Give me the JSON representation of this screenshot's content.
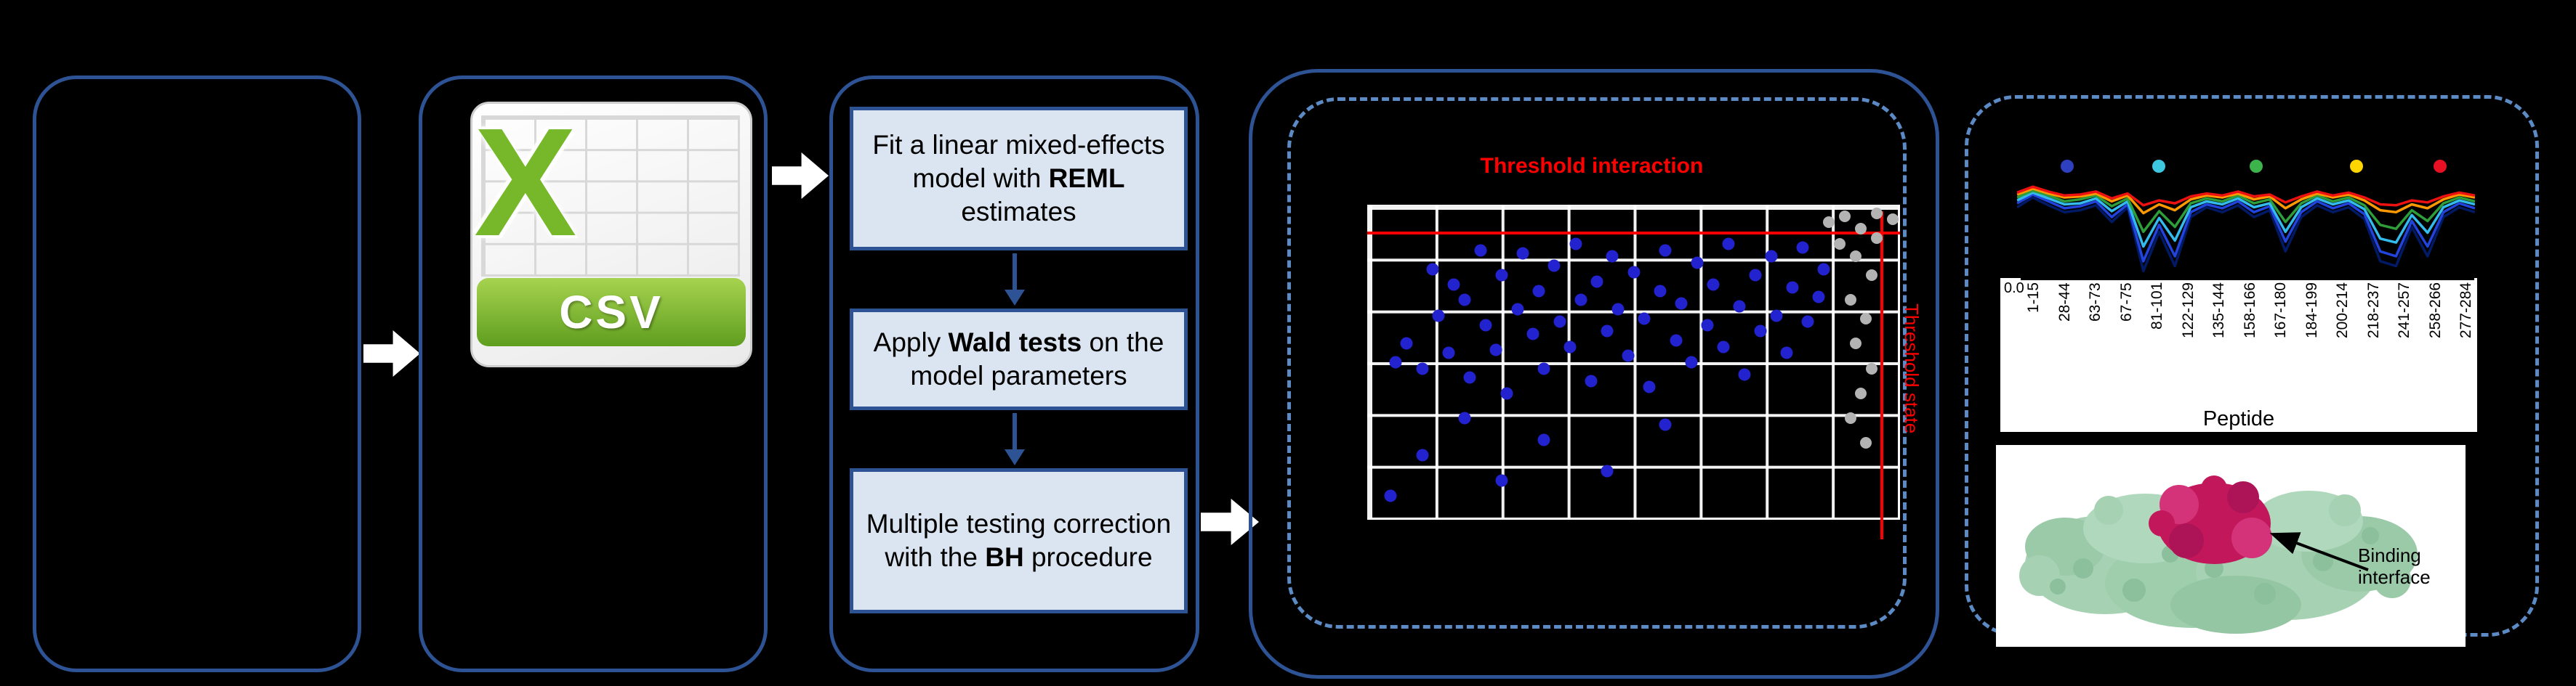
{
  "colors": {
    "background": "#000000",
    "panel_border": "#2e5395",
    "dashed_border": "#5b8ac5",
    "step_box_fill": "#dbe5f1",
    "step_box_border": "#2e5395",
    "arrow_white": "#ffffff",
    "threshold_red": "#ff0000",
    "scatter_blue": "#2222cf",
    "scatter_gray": "#b3b3b3",
    "csv_green": "#76b82a",
    "protein_green": "#a6d2b3",
    "protein_magenta": "#c2185b"
  },
  "csv_icon": {
    "letter": "X",
    "label": "CSV"
  },
  "steps": {
    "box1": {
      "pre": "Fit a linear mixed-effects model with ",
      "bold": "REML",
      "post": " estimates"
    },
    "box2": {
      "pre": "Apply ",
      "bold": "Wald tests",
      "post": " on the model parameters"
    },
    "box3": {
      "line1": "Multiple testing correction",
      "pre2": "with the ",
      "bold": "BH",
      "post2": " procedure"
    }
  },
  "scatter": {
    "title": "Threshold interaction",
    "right_label": "Threshold state",
    "hline_y": 0.08,
    "vline_x": 0.967,
    "blue_points": [
      [
        0.05,
        0.5
      ],
      [
        0.07,
        0.44
      ],
      [
        0.1,
        0.52
      ],
      [
        0.12,
        0.2
      ],
      [
        0.13,
        0.35
      ],
      [
        0.15,
        0.47
      ],
      [
        0.16,
        0.25
      ],
      [
        0.18,
        0.3
      ],
      [
        0.19,
        0.55
      ],
      [
        0.21,
        0.14
      ],
      [
        0.22,
        0.38
      ],
      [
        0.24,
        0.46
      ],
      [
        0.25,
        0.22
      ],
      [
        0.26,
        0.6
      ],
      [
        0.28,
        0.33
      ],
      [
        0.29,
        0.15
      ],
      [
        0.31,
        0.41
      ],
      [
        0.32,
        0.27
      ],
      [
        0.33,
        0.52
      ],
      [
        0.35,
        0.19
      ],
      [
        0.36,
        0.37
      ],
      [
        0.38,
        0.45
      ],
      [
        0.39,
        0.12
      ],
      [
        0.4,
        0.3
      ],
      [
        0.42,
        0.56
      ],
      [
        0.43,
        0.24
      ],
      [
        0.45,
        0.4
      ],
      [
        0.46,
        0.16
      ],
      [
        0.47,
        0.33
      ],
      [
        0.49,
        0.48
      ],
      [
        0.5,
        0.21
      ],
      [
        0.52,
        0.36
      ],
      [
        0.53,
        0.58
      ],
      [
        0.55,
        0.27
      ],
      [
        0.56,
        0.14
      ],
      [
        0.58,
        0.43
      ],
      [
        0.59,
        0.31
      ],
      [
        0.61,
        0.5
      ],
      [
        0.62,
        0.18
      ],
      [
        0.64,
        0.38
      ],
      [
        0.65,
        0.25
      ],
      [
        0.67,
        0.45
      ],
      [
        0.68,
        0.12
      ],
      [
        0.7,
        0.32
      ],
      [
        0.71,
        0.54
      ],
      [
        0.73,
        0.22
      ],
      [
        0.74,
        0.4
      ],
      [
        0.76,
        0.16
      ],
      [
        0.77,
        0.35
      ],
      [
        0.79,
        0.47
      ],
      [
        0.8,
        0.26
      ],
      [
        0.82,
        0.13
      ],
      [
        0.83,
        0.37
      ],
      [
        0.85,
        0.29
      ],
      [
        0.86,
        0.2
      ],
      [
        0.1,
        0.8
      ],
      [
        0.25,
        0.88
      ],
      [
        0.33,
        0.75
      ],
      [
        0.45,
        0.85
      ],
      [
        0.04,
        0.93
      ],
      [
        0.56,
        0.7
      ],
      [
        0.18,
        0.68
      ]
    ],
    "gray_points": [
      [
        0.87,
        0.05
      ],
      [
        0.9,
        0.03
      ],
      [
        0.93,
        0.07
      ],
      [
        0.96,
        0.02
      ],
      [
        0.89,
        0.12
      ],
      [
        0.92,
        0.16
      ],
      [
        0.95,
        0.22
      ],
      [
        0.91,
        0.3
      ],
      [
        0.94,
        0.36
      ],
      [
        0.92,
        0.44
      ],
      [
        0.95,
        0.52
      ],
      [
        0.93,
        0.6
      ],
      [
        0.91,
        0.68
      ],
      [
        0.94,
        0.76
      ],
      [
        0.96,
        0.1
      ],
      [
        0.99,
        0.04
      ]
    ]
  },
  "peptide_plot": {
    "y_tick": "0.0",
    "x_title": "Peptide",
    "x_labels": [
      "1-15",
      "28-44",
      "63-73",
      "67-75",
      "81-101",
      "122-129",
      "135-144",
      "158-166",
      "167-180",
      "184-199",
      "200-214",
      "218-237",
      "241-257",
      "258-266",
      "277-284"
    ],
    "marker_colors": [
      "#2e3fbf",
      "#3ec8e0",
      "#3cb44b",
      "#ffd500",
      "#e81123"
    ],
    "series": [
      {
        "color": "#001a66",
        "values": [
          0.3,
          0.2,
          0.28,
          0.35,
          0.33,
          0.28,
          0.45,
          0.3,
          0.95,
          0.55,
          0.9,
          0.4,
          0.3,
          0.35,
          0.28,
          0.4,
          0.33,
          0.75,
          0.4,
          0.28,
          0.35,
          0.3,
          0.42,
          0.85,
          0.9,
          0.5,
          0.8,
          0.4,
          0.3,
          0.35
        ]
      },
      {
        "color": "#2244dd",
        "values": [
          0.26,
          0.17,
          0.24,
          0.31,
          0.29,
          0.24,
          0.4,
          0.27,
          0.85,
          0.48,
          0.8,
          0.35,
          0.27,
          0.31,
          0.24,
          0.35,
          0.29,
          0.65,
          0.35,
          0.24,
          0.31,
          0.26,
          0.37,
          0.75,
          0.8,
          0.44,
          0.7,
          0.35,
          0.26,
          0.31
        ]
      },
      {
        "color": "#33bbee",
        "values": [
          0.23,
          0.15,
          0.21,
          0.27,
          0.26,
          0.21,
          0.34,
          0.24,
          0.7,
          0.41,
          0.64,
          0.3,
          0.24,
          0.27,
          0.21,
          0.3,
          0.26,
          0.55,
          0.3,
          0.21,
          0.27,
          0.23,
          0.32,
          0.62,
          0.66,
          0.38,
          0.56,
          0.3,
          0.23,
          0.27
        ]
      },
      {
        "color": "#2d9e3a",
        "values": [
          0.2,
          0.13,
          0.18,
          0.24,
          0.22,
          0.18,
          0.29,
          0.21,
          0.55,
          0.34,
          0.5,
          0.26,
          0.21,
          0.24,
          0.18,
          0.26,
          0.22,
          0.45,
          0.26,
          0.18,
          0.24,
          0.2,
          0.28,
          0.48,
          0.52,
          0.33,
          0.44,
          0.26,
          0.2,
          0.24
        ]
      },
      {
        "color": "#ff9900",
        "values": [
          0.17,
          0.11,
          0.16,
          0.2,
          0.19,
          0.16,
          0.24,
          0.18,
          0.36,
          0.27,
          0.33,
          0.22,
          0.18,
          0.2,
          0.16,
          0.22,
          0.19,
          0.31,
          0.22,
          0.16,
          0.2,
          0.17,
          0.23,
          0.33,
          0.35,
          0.27,
          0.31,
          0.22,
          0.17,
          0.2
        ]
      },
      {
        "color": "#ee1111",
        "values": [
          0.15,
          0.09,
          0.14,
          0.18,
          0.17,
          0.14,
          0.21,
          0.16,
          0.28,
          0.23,
          0.26,
          0.19,
          0.16,
          0.18,
          0.14,
          0.19,
          0.17,
          0.25,
          0.19,
          0.14,
          0.18,
          0.15,
          0.2,
          0.27,
          0.28,
          0.23,
          0.25,
          0.19,
          0.15,
          0.18
        ]
      }
    ]
  },
  "protein": {
    "annotation": "Binding interface"
  }
}
